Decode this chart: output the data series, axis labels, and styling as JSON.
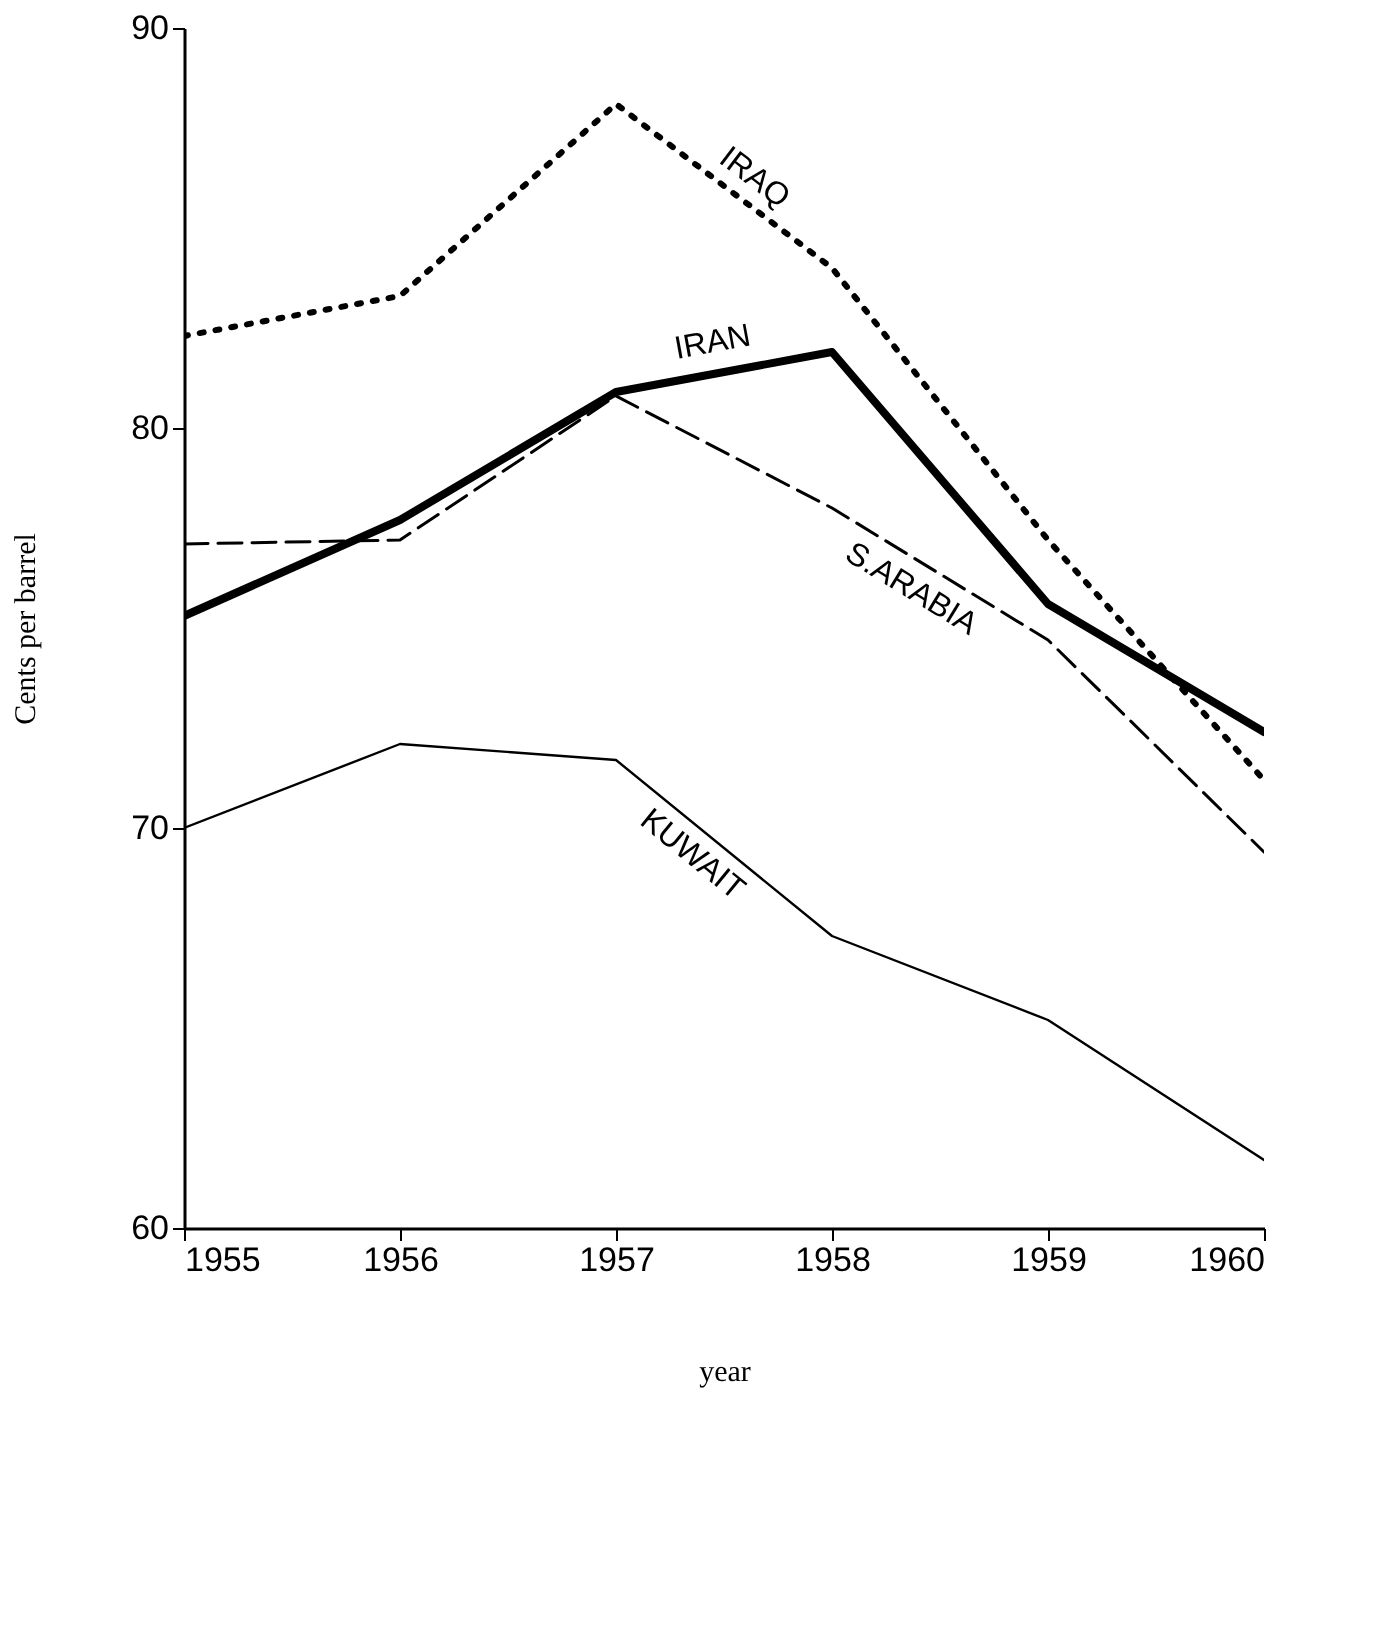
{
  "chart_data": {
    "type": "line",
    "xlabel": "year",
    "ylabel": "Cents per barrel",
    "x": [
      1955,
      1956,
      1957,
      1958,
      1959,
      1960
    ],
    "xlim": [
      1955,
      1960
    ],
    "xticks": [
      1955,
      1956,
      1957,
      1958,
      1959,
      1960
    ],
    "ylim": [
      60,
      90
    ],
    "yticks": [
      60,
      70,
      80,
      90
    ],
    "grid": false,
    "series": [
      {
        "name": "IRAQ",
        "color": "#000000",
        "line_style": "dotted",
        "values": [
          82.3,
          83.3,
          88.1,
          84.0,
          77.2,
          71.2
        ]
      },
      {
        "name": "IRAN",
        "color": "#000000",
        "line_style": "solid",
        "values": [
          75.3,
          77.7,
          80.9,
          81.9,
          75.6,
          72.4
        ]
      },
      {
        "name": "S.ARABIA",
        "color": "#000000",
        "line_style": "dashed",
        "values": [
          77.1,
          77.2,
          80.8,
          78.0,
          74.7,
          69.4
        ]
      },
      {
        "name": "KUWAIT",
        "color": "#000000",
        "line_style": "solid",
        "values": [
          70.0,
          72.1,
          71.7,
          67.3,
          65.2,
          61.7
        ]
      }
    ]
  }
}
